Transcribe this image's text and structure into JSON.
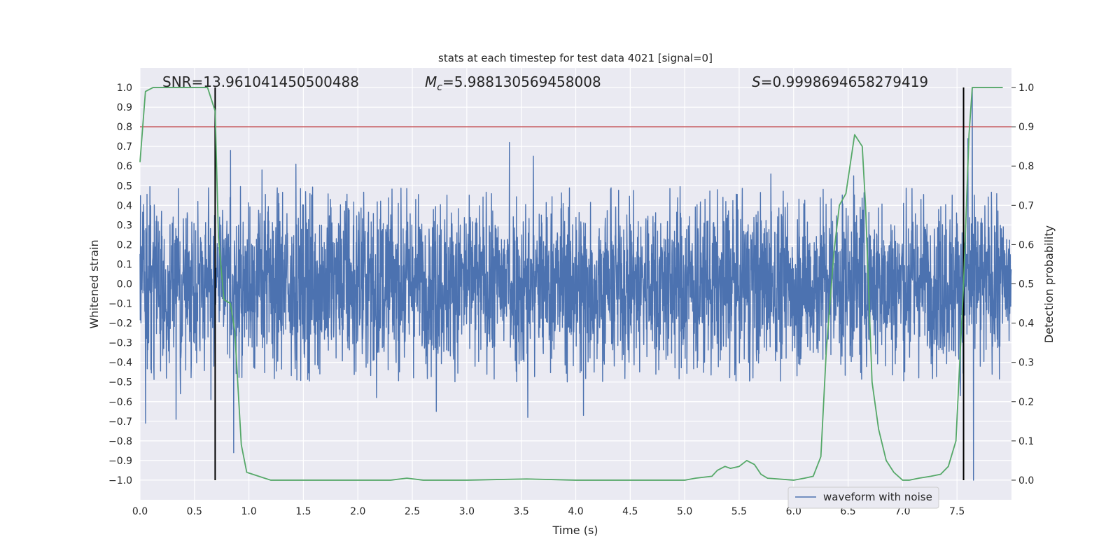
{
  "chart_data": {
    "type": "line",
    "title": "stats at each timestep for test data 4021 [signal=0]",
    "xlabel": "Time (s)",
    "ylabel": "Whitened strain",
    "y2label": "Detection probability",
    "xlim": [
      0.0,
      8.0
    ],
    "ylim": [
      -1.1,
      1.1
    ],
    "y2lim": [
      -0.05,
      1.05
    ],
    "xticks": [
      0.0,
      0.5,
      1.0,
      1.5,
      2.0,
      2.5,
      3.0,
      3.5,
      4.0,
      4.5,
      5.0,
      5.5,
      6.0,
      6.5,
      7.0,
      7.5
    ],
    "yticks": [
      -1.0,
      -0.9,
      -0.8,
      -0.7,
      -0.6,
      -0.5,
      -0.4,
      -0.3,
      -0.2,
      -0.1,
      0.0,
      0.1,
      0.2,
      0.3,
      0.4,
      0.5,
      0.6,
      0.7,
      0.8,
      0.9,
      1.0
    ],
    "y2ticks": [
      0.0,
      0.1,
      0.2,
      0.3,
      0.4,
      0.5,
      0.6,
      0.7,
      0.8,
      0.9,
      1.0
    ],
    "annotations": {
      "snr": "SNR=13.961041450500488",
      "mc_symbol": "M",
      "mc_sub": "c",
      "mc_value": "=5.988130569458008",
      "s_symbol": "S",
      "s_value": "=0.9998694658279419"
    },
    "threshold": {
      "value": 0.9,
      "axis": "y2",
      "color": "#c44e52"
    },
    "vlines": {
      "x": [
        0.69,
        7.56
      ],
      "ymin": 0.0,
      "ymax": 1.0,
      "axis": "y2",
      "color": "#000000"
    },
    "legend": {
      "label": "waveform with noise",
      "location": "lower-right"
    },
    "series": [
      {
        "name": "waveform with noise",
        "axis": "y",
        "color": "#4c72b0",
        "note": "dense whitened-noise trace sampled over 0-8 s, amplitude mostly within +/-0.45 with spikes",
        "typical_amplitude": 0.42,
        "spikes": [
          {
            "x": 0.05,
            "y": -0.71
          },
          {
            "x": 0.33,
            "y": -0.69
          },
          {
            "x": 0.37,
            "y": -0.56
          },
          {
            "x": 0.65,
            "y": -0.59
          },
          {
            "x": 0.83,
            "y": 0.68
          },
          {
            "x": 0.86,
            "y": -0.86
          },
          {
            "x": 1.12,
            "y": 0.58
          },
          {
            "x": 1.43,
            "y": 0.61
          },
          {
            "x": 2.17,
            "y": -0.58
          },
          {
            "x": 2.72,
            "y": -0.65
          },
          {
            "x": 3.39,
            "y": 0.72
          },
          {
            "x": 3.56,
            "y": -0.68
          },
          {
            "x": 3.61,
            "y": 0.65
          },
          {
            "x": 4.07,
            "y": -0.67
          },
          {
            "x": 5.79,
            "y": 0.56
          },
          {
            "x": 6.55,
            "y": 0.55
          },
          {
            "x": 7.53,
            "y": -0.57
          },
          {
            "x": 7.64,
            "y": 1.0
          },
          {
            "x": 7.65,
            "y": -1.0
          },
          {
            "x": 7.6,
            "y": 0.74
          }
        ]
      },
      {
        "name": "detection probability",
        "axis": "y2",
        "color": "#55a868",
        "x": [
          0.0,
          0.05,
          0.12,
          0.2,
          0.3,
          0.4,
          0.5,
          0.6,
          0.62,
          0.69,
          0.72,
          0.77,
          0.83,
          0.87,
          0.93,
          0.98,
          1.2,
          1.5,
          2.0,
          2.3,
          2.45,
          2.6,
          3.0,
          3.55,
          4.0,
          4.5,
          4.8,
          5.0,
          5.1,
          5.25,
          5.3,
          5.37,
          5.42,
          5.5,
          5.57,
          5.64,
          5.7,
          5.76,
          6.0,
          6.1,
          6.18,
          6.25,
          6.3,
          6.37,
          6.42,
          6.48,
          6.56,
          6.63,
          6.66,
          6.72,
          6.78,
          6.85,
          6.92,
          7.0,
          7.06,
          7.15,
          7.26,
          7.35,
          7.42,
          7.49,
          7.56,
          7.61,
          7.64,
          7.72,
          7.92
        ],
        "y": [
          0.81,
          0.99,
          1.0,
          1.0,
          1.0,
          1.0,
          1.0,
          1.0,
          1.0,
          0.94,
          0.62,
          0.46,
          0.45,
          0.38,
          0.09,
          0.02,
          0.0,
          0.0,
          0.0,
          0.0,
          0.005,
          0.0,
          0.0,
          0.003,
          0.0,
          0.0,
          0.0,
          0.0,
          0.005,
          0.01,
          0.025,
          0.035,
          0.03,
          0.035,
          0.05,
          0.04,
          0.015,
          0.005,
          0.0,
          0.005,
          0.01,
          0.06,
          0.33,
          0.58,
          0.7,
          0.73,
          0.88,
          0.85,
          0.7,
          0.25,
          0.13,
          0.05,
          0.02,
          0.0,
          0.0,
          0.005,
          0.01,
          0.015,
          0.035,
          0.1,
          0.5,
          0.88,
          1.0,
          1.0,
          1.0
        ]
      }
    ]
  }
}
